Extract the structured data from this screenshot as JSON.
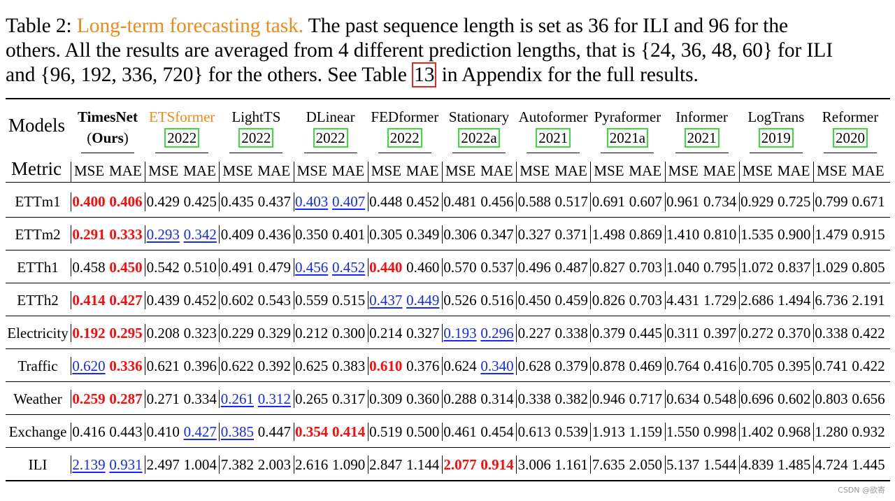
{
  "caption": {
    "line1_prefix": "Table 2: ",
    "line1_highlight": "Long-term forecasting task.",
    "line1_rest": " The past sequence length is set as 36 for ILI and 96 for the",
    "line2": "others. All the results are averaged from 4 different prediction lengths, that is {24, 36, 48, 60} for ILI",
    "line3_prefix": "and {96, 192, 336, 720} for the others. See Table ",
    "line3_ref": "13",
    "line3_suffix": " in Appendix for the full results."
  },
  "header": {
    "models_label": "Models",
    "metric_label": "Metric",
    "mse": "MSE",
    "mae": "MAE"
  },
  "models": [
    {
      "name": "TimesNet",
      "year_prefix": "(",
      "year_bold": "Ours",
      "year_suffix": ")",
      "name_color": "#000000",
      "name_bold": true
    },
    {
      "name": "ETSformer",
      "year": "2022",
      "name_color": "#f28a1a"
    },
    {
      "name": "LightTS",
      "year": "2022",
      "name_color": "#000000"
    },
    {
      "name": "DLinear",
      "year": "2022",
      "name_color": "#000000"
    },
    {
      "name": "FEDformer",
      "year": "2022",
      "name_color": "#000000"
    },
    {
      "name": "Stationary",
      "year": "2022a",
      "name_color": "#000000"
    },
    {
      "name": "Autoformer",
      "year": "2021",
      "name_color": "#000000"
    },
    {
      "name": "Pyraformer",
      "year": "2021a",
      "name_color": "#000000"
    },
    {
      "name": "Informer",
      "year": "2021",
      "name_color": "#000000"
    },
    {
      "name": "LogTrans",
      "year": "2019",
      "name_color": "#000000"
    },
    {
      "name": "Reformer",
      "year": "2020",
      "name_color": "#000000"
    }
  ],
  "rows": [
    {
      "dataset": "ETTm1",
      "values": [
        "0.400",
        "0.406",
        "0.429",
        "0.425",
        "0.435",
        "0.437",
        "0.403",
        "0.407",
        "0.448",
        "0.452",
        "0.481",
        "0.456",
        "0.588",
        "0.517",
        "0.691",
        "0.607",
        "0.961",
        "0.734",
        "0.929",
        "0.725",
        "0.799",
        "0.671"
      ],
      "best": [
        0,
        1
      ],
      "second": [
        6,
        7
      ]
    },
    {
      "dataset": "ETTm2",
      "values": [
        "0.291",
        "0.333",
        "0.293",
        "0.342",
        "0.409",
        "0.436",
        "0.350",
        "0.401",
        "0.305",
        "0.349",
        "0.306",
        "0.347",
        "0.327",
        "0.371",
        "1.498",
        "0.869",
        "1.410",
        "0.810",
        "1.535",
        "0.900",
        "1.479",
        "0.915"
      ],
      "best": [
        0,
        1
      ],
      "second": [
        2,
        3
      ]
    },
    {
      "dataset": "ETTh1",
      "values": [
        "0.458",
        "0.450",
        "0.542",
        "0.510",
        "0.491",
        "0.479",
        "0.456",
        "0.452",
        "0.440",
        "0.460",
        "0.570",
        "0.537",
        "0.496",
        "0.487",
        "0.827",
        "0.703",
        "1.040",
        "0.795",
        "1.072",
        "0.837",
        "1.029",
        "0.805"
      ],
      "best": [
        1,
        8
      ],
      "second": [
        6,
        7
      ]
    },
    {
      "dataset": "ETTh2",
      "values": [
        "0.414",
        "0.427",
        "0.439",
        "0.452",
        "0.602",
        "0.543",
        "0.559",
        "0.515",
        "0.437",
        "0.449",
        "0.526",
        "0.516",
        "0.450",
        "0.459",
        "0.826",
        "0.703",
        "4.431",
        "1.729",
        "2.686",
        "1.494",
        "6.736",
        "2.191"
      ],
      "best": [
        0,
        1
      ],
      "second": [
        8,
        9
      ]
    },
    {
      "dataset": "Electricity",
      "values": [
        "0.192",
        "0.295",
        "0.208",
        "0.323",
        "0.229",
        "0.329",
        "0.212",
        "0.300",
        "0.214",
        "0.327",
        "0.193",
        "0.296",
        "0.227",
        "0.338",
        "0.379",
        "0.445",
        "0.311",
        "0.397",
        "0.272",
        "0.370",
        "0.338",
        "0.422"
      ],
      "best": [
        0,
        1
      ],
      "second": [
        10,
        11
      ]
    },
    {
      "dataset": "Traffic",
      "values": [
        "0.620",
        "0.336",
        "0.621",
        "0.396",
        "0.622",
        "0.392",
        "0.625",
        "0.383",
        "0.610",
        "0.376",
        "0.624",
        "0.340",
        "0.628",
        "0.379",
        "0.878",
        "0.469",
        "0.764",
        "0.416",
        "0.705",
        "0.395",
        "0.741",
        "0.422"
      ],
      "best": [
        1,
        8
      ],
      "second": [
        0,
        11
      ]
    },
    {
      "dataset": "Weather",
      "values": [
        "0.259",
        "0.287",
        "0.271",
        "0.334",
        "0.261",
        "0.312",
        "0.265",
        "0.317",
        "0.309",
        "0.360",
        "0.288",
        "0.314",
        "0.338",
        "0.382",
        "0.946",
        "0.717",
        "0.634",
        "0.548",
        "0.696",
        "0.602",
        "0.803",
        "0.656"
      ],
      "best": [
        0,
        1
      ],
      "second": [
        4,
        5
      ]
    },
    {
      "dataset": "Exchange",
      "values": [
        "0.416",
        "0.443",
        "0.410",
        "0.427",
        "0.385",
        "0.447",
        "0.354",
        "0.414",
        "0.519",
        "0.500",
        "0.461",
        "0.454",
        "0.613",
        "0.539",
        "1.913",
        "1.159",
        "1.550",
        "0.998",
        "1.402",
        "0.968",
        "1.280",
        "0.932"
      ],
      "best": [
        6,
        7
      ],
      "second": [
        3,
        4
      ]
    },
    {
      "dataset": "ILI",
      "values": [
        "2.139",
        "0.931",
        "2.497",
        "1.004",
        "7.382",
        "2.003",
        "2.616",
        "1.090",
        "2.847",
        "1.144",
        "2.077",
        "0.914",
        "3.006",
        "1.161",
        "7.635",
        "2.050",
        "5.137",
        "1.544",
        "4.839",
        "1.485",
        "4.724",
        "1.445"
      ],
      "best": [
        10,
        11
      ],
      "second": [
        0,
        1
      ]
    }
  ],
  "watermark": "CSDN @欲寄"
}
